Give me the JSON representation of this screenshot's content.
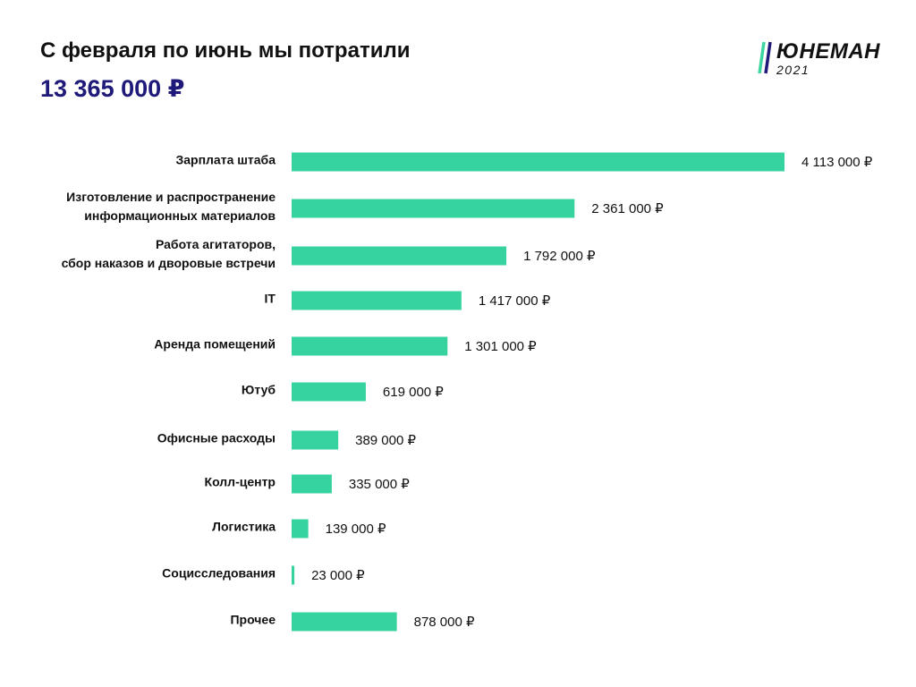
{
  "header": {
    "title": "С февраля по июнь мы потратили",
    "total": "13 365 000 ₽"
  },
  "logo": {
    "name": "ЮНЕМАН",
    "year": "2021",
    "stroke_colors": [
      "#3dd6a0",
      "#1f1a7a"
    ]
  },
  "chart_data": {
    "type": "bar",
    "orientation": "horizontal",
    "bar_color": "#36d29f",
    "categories": [
      [
        "Зарплата штаба"
      ],
      [
        "Изготовление и распространение",
        "информационных материалов"
      ],
      [
        "Работа агитаторов,",
        "сбор наказов и дворовые встречи"
      ],
      [
        "IT"
      ],
      [
        "Аренда помещений"
      ],
      [
        "Ютуб"
      ],
      [
        "Офисные расходы"
      ],
      [
        "Колл-центр"
      ],
      [
        "Логистика"
      ],
      [
        "Социсследования"
      ],
      [
        "Прочее"
      ]
    ],
    "values": [
      4113000,
      2361000,
      1792000,
      1417000,
      1301000,
      619000,
      389000,
      335000,
      139000,
      23000,
      878000
    ],
    "value_labels": [
      "4 113 000 ₽",
      "2 361 000 ₽",
      "1 792 000 ₽",
      "1 417 000 ₽",
      "1 301 000 ₽",
      "619 000 ₽",
      "389 000 ₽",
      "335 000 ₽",
      "139 000 ₽",
      "23 000 ₽",
      "878 000 ₽"
    ],
    "xlim": [
      0,
      4113000
    ],
    "grid": false,
    "legend": "none"
  }
}
